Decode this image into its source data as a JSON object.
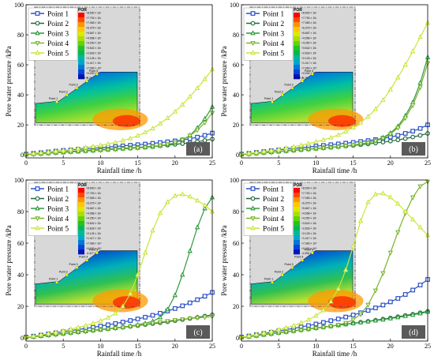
{
  "colors": {
    "series": [
      "#2b50c8",
      "#1f6b3a",
      "#2f9a3c",
      "#7ab52a",
      "#c8e63a"
    ],
    "tag_bg": "#5a5a5a",
    "contour": [
      "#ff0000",
      "#ff4a00",
      "#ff9300",
      "#ffc800",
      "#e0e800",
      "#a8e000",
      "#62d400",
      "#22c41e",
      "#00b85a",
      "#00b89a",
      "#00a8c8",
      "#0078d8",
      "#0046d8",
      "#0016c0"
    ]
  },
  "inset": {
    "title": "POR",
    "points": [
      "Point 1",
      "Point 2",
      "Point 3",
      "Point 4",
      "Point 5"
    ],
    "values_a": [
      "+8.500 × 10¹",
      "+7.792 × 10¹",
      "+7.083 × 10¹",
      "+6.375 × 10¹",
      "+5.667 × 10¹",
      "+4.958 × 10¹",
      "+4.250 × 10¹",
      "+3.542 × 10¹",
      "+2.833 × 10¹",
      "+2.125 × 10¹",
      "+1.417 × 10¹",
      "+7.083 × 10⁰",
      "+0.000 × 10⁰",
      "-4.096 × 10⁰"
    ],
    "values_b": [
      "+8.500 × 10¹",
      "+7.792 × 10¹",
      "+7.083 × 10¹",
      "+6.375 × 10¹",
      "+5.667 × 10¹",
      "+4.958 × 10¹",
      "+4.250 × 10¹",
      "+3.542 × 10¹",
      "+2.833 × 10¹",
      "+2.125 × 10¹",
      "+1.417 × 10¹",
      "+7.083 × 10⁰",
      "+0.000 × 10⁰",
      "-3.763 × 10⁰"
    ],
    "values_c": [
      "+8.500 × 10¹",
      "+7.792 × 10¹",
      "+7.083 × 10¹",
      "+6.375 × 10¹",
      "+5.667 × 10¹",
      "+4.958 × 10¹",
      "+4.250 × 10¹",
      "+3.542 × 10¹",
      "+2.833 × 10¹",
      "+2.125 × 10¹",
      "+1.417 × 10¹",
      "+7.083 × 10⁰",
      "+0.000 × 10⁰",
      "-4.417 × 10⁰"
    ],
    "values_d": [
      "+8.500 × 10¹",
      "+7.792 × 10¹",
      "+7.083 × 10¹",
      "+6.375 × 10¹",
      "+5.667 × 10¹",
      "+4.958 × 10¹",
      "+4.250 × 10¹",
      "+3.542 × 10¹",
      "+2.833 × 10¹",
      "+2.125 × 10¹",
      "+1.417 × 10¹",
      "+7.083 × 10⁰",
      "+0.000 × 10⁰",
      "-4.096 × 10⁰"
    ]
  },
  "chart_data": [
    {
      "type": "line",
      "panel_label": "(a)",
      "xlabel": "Rainfall time /h",
      "ylabel": "Pore water pressure /kPa",
      "xlim": [
        0,
        25
      ],
      "ylim": [
        -2,
        100
      ],
      "xticks": [
        0,
        5,
        10,
        15,
        20,
        25
      ],
      "yticks": [
        0,
        20,
        40,
        60,
        80,
        100
      ],
      "legend_position": "top-left",
      "x": [
        0,
        1,
        2,
        3,
        4,
        5,
        6,
        7,
        8,
        9,
        10,
        11,
        12,
        13,
        14,
        15,
        16,
        17,
        18,
        19,
        20,
        21,
        22,
        23,
        24,
        25
      ],
      "series": [
        {
          "name": "Point 1",
          "marker": "square",
          "values": [
            0.5,
            1,
            1.5,
            2,
            2.5,
            3,
            3.3,
            3.7,
            4,
            4.4,
            4.8,
            5.2,
            5.6,
            6,
            6.4,
            6.8,
            7.2,
            7.7,
            8.2,
            8.7,
            9.3,
            10,
            10.8,
            11.8,
            13,
            14.5
          ]
        },
        {
          "name": "Point 2",
          "marker": "circle",
          "values": [
            0.3,
            0.7,
            1,
            1.3,
            1.6,
            2,
            2.3,
            2.6,
            2.9,
            3.2,
            3.5,
            3.8,
            4.1,
            4.4,
            4.7,
            5,
            5.3,
            5.7,
            6.1,
            6.5,
            7,
            7.5,
            8.1,
            8.8,
            9.6,
            10.5
          ]
        },
        {
          "name": "Point 3",
          "marker": "triangle",
          "values": [
            0.2,
            0.5,
            0.8,
            1.1,
            1.4,
            1.7,
            2,
            2.3,
            2.6,
            2.9,
            3.2,
            3.5,
            3.8,
            4.1,
            4.4,
            4.7,
            5,
            5.4,
            6,
            6.8,
            8,
            10,
            13,
            18,
            24,
            32
          ]
        },
        {
          "name": "Point 4",
          "marker": "triangle-down",
          "values": [
            0.1,
            0.4,
            0.7,
            1,
            1.3,
            1.6,
            1.9,
            2.2,
            2.5,
            2.8,
            3.1,
            3.4,
            3.7,
            4,
            4.3,
            4.6,
            5,
            5.5,
            6.2,
            7,
            8.2,
            10,
            12.8,
            16.5,
            21.5,
            28
          ]
        },
        {
          "name": "Point 5",
          "marker": "triangle",
          "values": [
            0.5,
            1,
            1.5,
            2,
            2.5,
            3,
            3.6,
            4.2,
            4.9,
            5.6,
            6.4,
            7.3,
            8.3,
            9.5,
            11,
            12.8,
            15,
            17.6,
            20.8,
            24.5,
            28.8,
            33.5,
            38.8,
            44.5,
            50.5,
            57
          ]
        }
      ]
    },
    {
      "type": "line",
      "panel_label": "(b)",
      "xlabel": "Rainfall time /h",
      "ylabel": "Pore water pressure /kPa",
      "xlim": [
        0,
        25
      ],
      "ylim": [
        -2,
        100
      ],
      "xticks": [
        0,
        5,
        10,
        15,
        20,
        25
      ],
      "yticks": [
        0,
        20,
        40,
        60,
        80,
        100
      ],
      "legend_position": "top-left",
      "x": [
        0,
        1,
        2,
        3,
        4,
        5,
        6,
        7,
        8,
        9,
        10,
        11,
        12,
        13,
        14,
        15,
        16,
        17,
        18,
        19,
        20,
        21,
        22,
        23,
        24,
        25
      ],
      "series": [
        {
          "name": "Point 1",
          "marker": "square",
          "values": [
            0.5,
            1,
            1.6,
            2.2,
            2.8,
            3.3,
            3.8,
            4.3,
            4.8,
            5.3,
            5.8,
            6.3,
            6.8,
            7.3,
            7.8,
            8.3,
            8.9,
            9.5,
            10.2,
            11,
            11.9,
            13,
            14.3,
            15.8,
            17.6,
            20
          ]
        },
        {
          "name": "Point 2",
          "marker": "circle",
          "values": [
            0.3,
            0.7,
            1.1,
            1.5,
            1.9,
            2.3,
            2.7,
            3.1,
            3.5,
            3.9,
            4.3,
            4.7,
            5.1,
            5.5,
            5.9,
            6.3,
            6.8,
            7.3,
            7.9,
            8.5,
            9.2,
            10,
            10.9,
            11.9,
            13,
            14.3
          ]
        },
        {
          "name": "Point 3",
          "marker": "triangle",
          "values": [
            0.2,
            0.6,
            1,
            1.4,
            1.8,
            2.2,
            2.6,
            3,
            3.4,
            3.8,
            4.2,
            4.6,
            5,
            5.5,
            6,
            6.6,
            7.3,
            8.2,
            9.5,
            11.5,
            14.5,
            19,
            26,
            35,
            48,
            65
          ]
        },
        {
          "name": "Point 4",
          "marker": "triangle-down",
          "values": [
            0.1,
            0.5,
            0.9,
            1.3,
            1.7,
            2.1,
            2.5,
            2.9,
            3.3,
            3.7,
            4.1,
            4.5,
            4.9,
            5.4,
            5.9,
            6.5,
            7.2,
            8,
            9.2,
            11,
            13.8,
            18,
            24.5,
            33,
            45,
            61
          ]
        },
        {
          "name": "Point 5",
          "marker": "triangle",
          "values": [
            0.5,
            1.1,
            1.7,
            2.3,
            3,
            3.7,
            4.5,
            5.4,
            6.4,
            7.5,
            8.7,
            10,
            11.5,
            13.3,
            15.5,
            18.2,
            21.5,
            25.5,
            30.5,
            36.5,
            43.5,
            51.5,
            60,
            69,
            78.5,
            88
          ]
        }
      ]
    },
    {
      "type": "line",
      "panel_label": "(c)",
      "xlabel": "Rainfall time /h",
      "ylabel": "Pore water pressure /kPa",
      "xlim": [
        0,
        25
      ],
      "ylim": [
        -2,
        100
      ],
      "xticks": [
        0,
        5,
        10,
        15,
        20,
        25
      ],
      "yticks": [
        0,
        20,
        40,
        60,
        80,
        100
      ],
      "legend_position": "top-left",
      "x": [
        0,
        1,
        2,
        3,
        4,
        5,
        6,
        7,
        8,
        9,
        10,
        11,
        12,
        13,
        14,
        15,
        16,
        17,
        18,
        19,
        20,
        21,
        22,
        23,
        24,
        25
      ],
      "series": [
        {
          "name": "Point 1",
          "marker": "square",
          "values": [
            0.5,
            1.1,
            1.8,
            2.5,
            3.2,
            3.9,
            4.6,
            5.3,
            6,
            6.7,
            7.5,
            8.3,
            9.1,
            10,
            11,
            12,
            13.1,
            14.3,
            15.6,
            17,
            18.6,
            20.3,
            22.2,
            24.2,
            26.4,
            28.8
          ]
        },
        {
          "name": "Point 2",
          "marker": "circle",
          "values": [
            0.3,
            0.8,
            1.3,
            1.8,
            2.3,
            2.8,
            3.3,
            3.8,
            4.3,
            4.8,
            5.3,
            5.8,
            6.3,
            6.8,
            7.3,
            7.8,
            8.4,
            9,
            9.6,
            10.2,
            10.9,
            11.6,
            12.3,
            13,
            13.8,
            14.6
          ]
        },
        {
          "name": "Point 3",
          "marker": "triangle",
          "values": [
            0.2,
            0.7,
            1.2,
            1.7,
            2.2,
            2.7,
            3.2,
            3.7,
            4.2,
            4.7,
            5.2,
            5.7,
            6.2,
            6.8,
            7.5,
            8.3,
            9.2,
            10.5,
            13,
            18,
            27,
            40,
            55,
            70,
            82,
            89
          ]
        },
        {
          "name": "Point 4",
          "marker": "triangle-down",
          "values": [
            0.1,
            0.6,
            1.1,
            1.6,
            2.1,
            2.6,
            3.1,
            3.6,
            4.1,
            4.6,
            5.1,
            5.6,
            6.1,
            6.6,
            7.2,
            7.9,
            8.6,
            9.3,
            10,
            10.7,
            11.3,
            11.8,
            12.3,
            12.7,
            13.1,
            13.5
          ]
        },
        {
          "name": "Point 5",
          "marker": "triangle",
          "values": [
            0.5,
            1.2,
            2,
            2.8,
            3.6,
            4.5,
            5.5,
            6.6,
            7.8,
            9.2,
            10.8,
            12.8,
            15.5,
            20,
            28,
            40,
            54,
            68,
            79,
            86,
            90,
            91,
            89.5,
            87,
            84,
            80
          ]
        }
      ]
    },
    {
      "type": "line",
      "panel_label": "(d)",
      "xlabel": "Rainfall time /h",
      "ylabel": "Pore water pressure /kPa",
      "xlim": [
        0,
        25
      ],
      "ylim": [
        -2,
        100
      ],
      "xticks": [
        0,
        5,
        10,
        15,
        20,
        25
      ],
      "yticks": [
        0,
        20,
        40,
        60,
        80,
        100
      ],
      "legend_position": "top-left",
      "x": [
        0,
        1,
        2,
        3,
        4,
        5,
        6,
        7,
        8,
        9,
        10,
        11,
        12,
        13,
        14,
        15,
        16,
        17,
        18,
        19,
        20,
        21,
        22,
        23,
        24,
        25
      ],
      "series": [
        {
          "name": "Point 1",
          "marker": "square",
          "values": [
            0.5,
            1.2,
            2,
            2.8,
            3.6,
            4.4,
            5.2,
            6,
            6.9,
            7.8,
            8.8,
            9.8,
            10.9,
            12,
            13.2,
            14.5,
            15.9,
            17.4,
            19,
            20.8,
            22.8,
            25,
            27.5,
            30.3,
            33.5,
            37
          ]
        },
        {
          "name": "Point 2",
          "marker": "circle",
          "values": [
            0.3,
            0.9,
            1.5,
            2.1,
            2.7,
            3.3,
            3.9,
            4.5,
            5.1,
            5.7,
            6.3,
            6.9,
            7.5,
            8.1,
            8.7,
            9.3,
            9.9,
            10.5,
            11.2,
            11.9,
            12.6,
            13.4,
            14.2,
            15,
            15.9,
            16.8
          ]
        },
        {
          "name": "Point 3",
          "marker": "triangle",
          "values": [
            0.2,
            0.8,
            1.4,
            2,
            2.6,
            3.2,
            3.8,
            4.4,
            5,
            5.6,
            6.2,
            6.8,
            7.4,
            8,
            8.6,
            9.2,
            9.8,
            10.4,
            11,
            11.6,
            12.3,
            13,
            13.8,
            14.6,
            15.5,
            16.5
          ]
        },
        {
          "name": "Point 4",
          "marker": "triangle-down",
          "values": [
            0.1,
            0.7,
            1.3,
            1.9,
            2.5,
            3.1,
            3.7,
            4.3,
            4.9,
            5.5,
            6.1,
            6.7,
            7.4,
            8.3,
            9.5,
            11.5,
            15,
            21,
            30,
            41,
            54,
            67,
            79,
            89,
            96,
            99
          ]
        },
        {
          "name": "Point 5",
          "marker": "triangle",
          "values": [
            0.5,
            1.3,
            2.2,
            3.1,
            4.1,
            5.2,
            6.4,
            7.8,
            9.5,
            11.5,
            14,
            17.5,
            23,
            31,
            43,
            58,
            74,
            86,
            91,
            91.5,
            89,
            85,
            80,
            75,
            70,
            65
          ]
        }
      ]
    }
  ]
}
